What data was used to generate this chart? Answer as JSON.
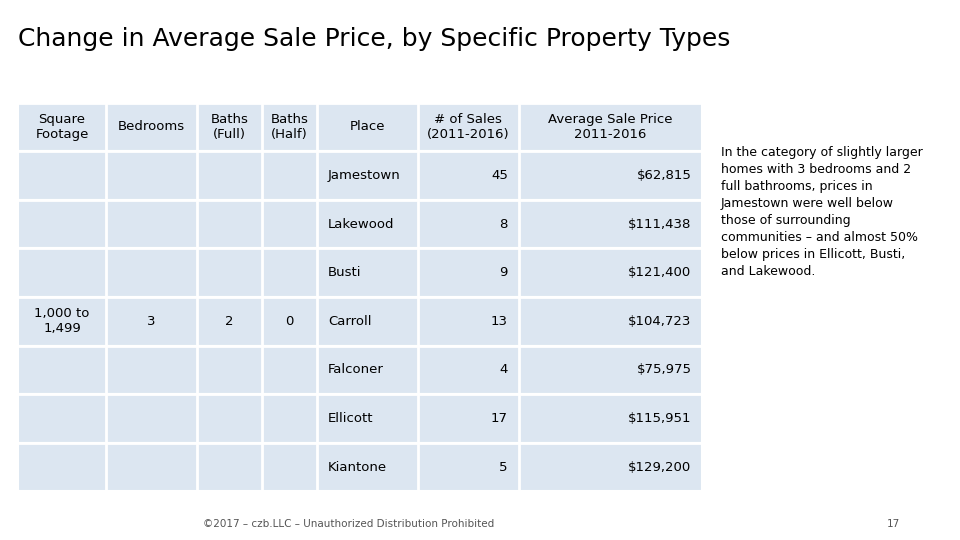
{
  "title": "Change in Average Sale Price, by Specific Property Types",
  "col_headers": [
    "Square\nFootage",
    "Bedrooms",
    "Baths\n(Full)",
    "Baths\n(Half)",
    "Place",
    "# of Sales\n(2011-2016)",
    "Average Sale Price\n2011-2016"
  ],
  "sq_footage": "1,000 to\n1,499",
  "bedrooms": "3",
  "baths_full": "2",
  "baths_half": "0",
  "rows": [
    [
      "Jamestown",
      "45",
      "$62,815"
    ],
    [
      "Lakewood",
      "8",
      "$111,438"
    ],
    [
      "Busti",
      "9",
      "$121,400"
    ],
    [
      "Carroll",
      "13",
      "$104,723"
    ],
    [
      "Falconer",
      "4",
      "$75,975"
    ],
    [
      "Ellicott",
      "17",
      "$115,951"
    ],
    [
      "Kiantone",
      "5",
      "$129,200"
    ]
  ],
  "annotation": "In the category of slightly larger\nhomes with 3 bedrooms and 2\nfull bathrooms, prices in\nJamestown were well below\nthose of surrounding\ncommunities – and almost 50%\nbelow prices in Ellicott, Busti,\nand Lakewood.",
  "footer": "©2017 – czb.LLC – Unauthorized Distribution Prohibited",
  "page_num": "17",
  "header_bg": "#dce6f1",
  "row_bg": "#dce6f1",
  "bg_color": "#ffffff",
  "text_color": "#000000",
  "title_fontsize": 18,
  "header_fontsize": 9.5,
  "cell_fontsize": 9.5,
  "annotation_fontsize": 9,
  "footer_fontsize": 7.5
}
